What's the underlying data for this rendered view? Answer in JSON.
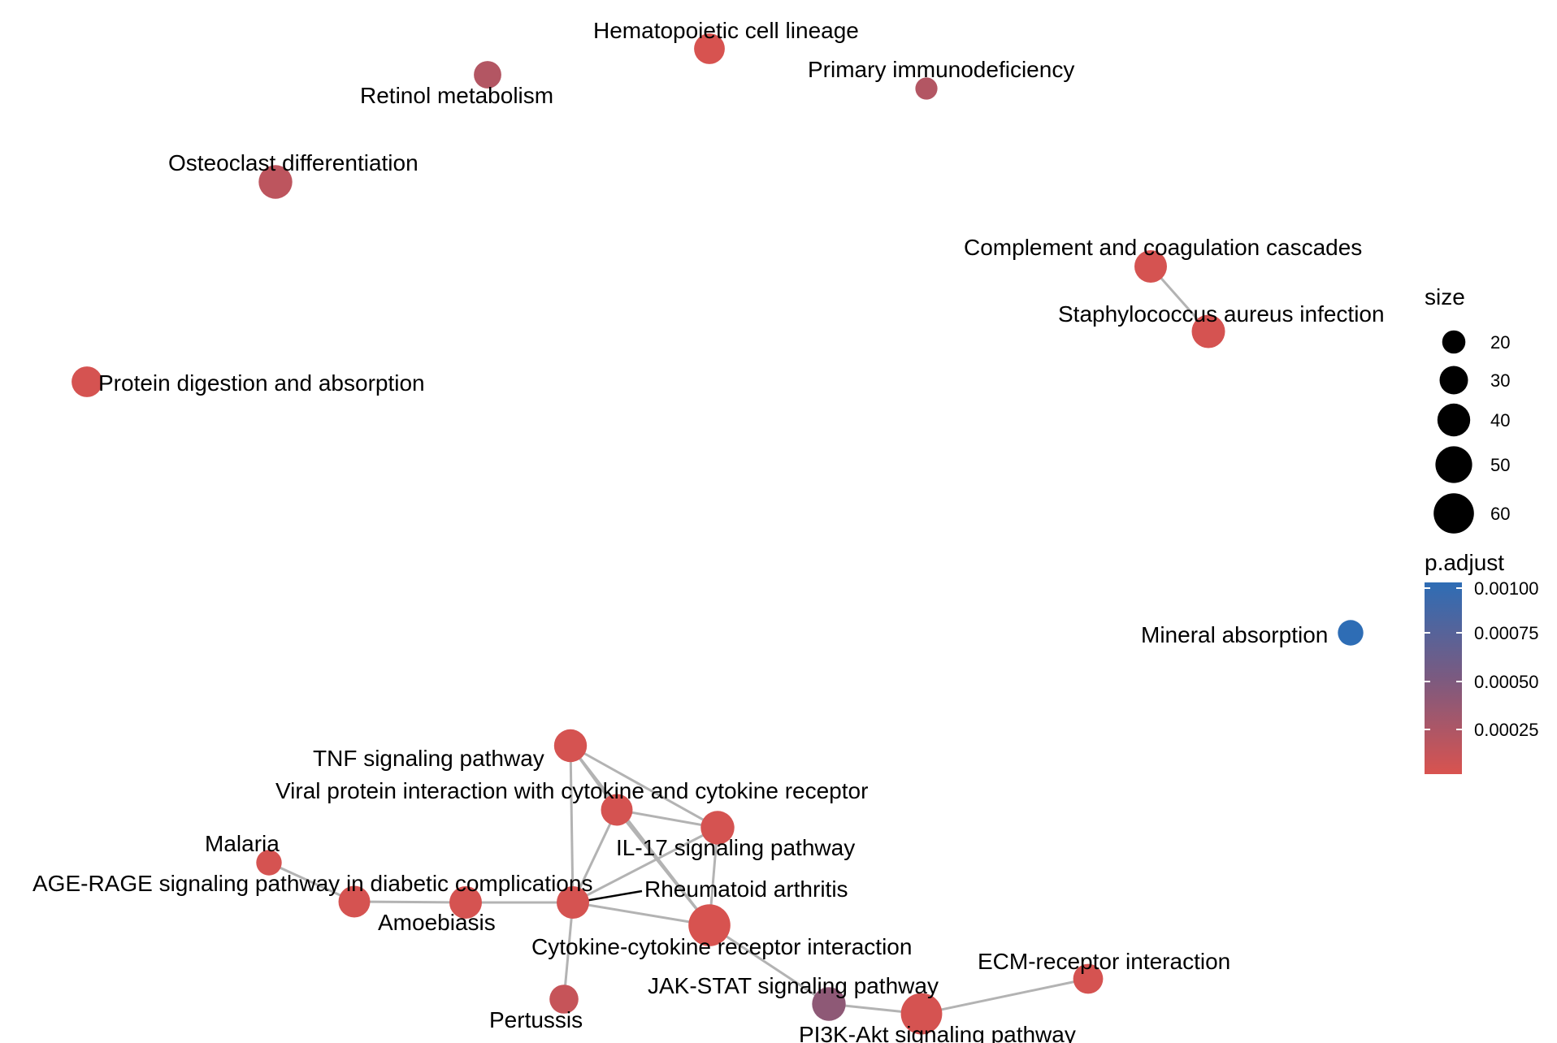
{
  "nodes": [
    {
      "id": "hematopoietic",
      "label": "Hematopoietic cell lineage",
      "size": 35,
      "p_adjust": 1e-05
    },
    {
      "id": "retinol",
      "label": "Retinol metabolism",
      "size": 28,
      "p_adjust": 0.0002
    },
    {
      "id": "primary_immuno",
      "label": "Primary immunodeficiency",
      "size": 18,
      "p_adjust": 0.0002
    },
    {
      "id": "osteoclast",
      "label": "Osteoclast differentiation",
      "size": 42,
      "p_adjust": 0.00015
    },
    {
      "id": "complement",
      "label": "Complement and coagulation cascades",
      "size": 39,
      "p_adjust": 2e-05
    },
    {
      "id": "staph",
      "label": "Staphylococcus aureus infection",
      "size": 41,
      "p_adjust": 2e-05
    },
    {
      "id": "protein_digest",
      "label": "Protein digestion and absorption",
      "size": 35,
      "p_adjust": 2e-05
    },
    {
      "id": "mineral",
      "label": "Mineral absorption",
      "size": 24,
      "p_adjust": 0.001
    },
    {
      "id": "tnf",
      "label": "TNF signaling pathway",
      "size": 40,
      "p_adjust": 2e-05
    },
    {
      "id": "viral",
      "label": "Viral protein interaction with cytokine and cytokine receptor",
      "size": 37,
      "p_adjust": 2e-05
    },
    {
      "id": "il17",
      "label": "IL-17 signaling pathway",
      "size": 42,
      "p_adjust": 2e-05
    },
    {
      "id": "malaria",
      "label": "Malaria",
      "size": 24,
      "p_adjust": 2e-05
    },
    {
      "id": "agerage",
      "label": "AGE-RAGE signaling pathway in diabetic complications",
      "size": 37,
      "p_adjust": 2e-05
    },
    {
      "id": "amoebiasis",
      "label": "Amoebiasis",
      "size": 39,
      "p_adjust": 2e-05
    },
    {
      "id": "rheumatoid",
      "label": "Rheumatoid arthritis",
      "size": 39,
      "p_adjust": 2e-05
    },
    {
      "id": "cytokine",
      "label": "Cytokine-cytokine receptor interaction",
      "size": 65,
      "p_adjust": 1e-05
    },
    {
      "id": "pertussis",
      "label": "Pertussis",
      "size": 31,
      "p_adjust": 0.0001
    },
    {
      "id": "jakstat",
      "label": "JAK-STAT signaling pathway",
      "size": 42,
      "p_adjust": 0.0004
    },
    {
      "id": "pi3k",
      "label": "PI3K-Akt signaling pathway",
      "size": 63,
      "p_adjust": 2e-05
    },
    {
      "id": "ecm",
      "label": "ECM-receptor interaction",
      "size": 33,
      "p_adjust": 2e-05
    }
  ],
  "edges": [
    [
      "complement",
      "staph"
    ],
    [
      "tnf",
      "viral"
    ],
    [
      "tnf",
      "il17"
    ],
    [
      "tnf",
      "rheumatoid"
    ],
    [
      "tnf",
      "cytokine"
    ],
    [
      "viral",
      "il17"
    ],
    [
      "viral",
      "rheumatoid"
    ],
    [
      "viral",
      "cytokine"
    ],
    [
      "il17",
      "rheumatoid"
    ],
    [
      "il17",
      "cytokine"
    ],
    [
      "rheumatoid",
      "cytokine"
    ],
    [
      "rheumatoid",
      "amoebiasis"
    ],
    [
      "rheumatoid",
      "pertussis"
    ],
    [
      "amoebiasis",
      "agerage"
    ],
    [
      "agerage",
      "malaria"
    ],
    [
      "cytokine",
      "jakstat"
    ],
    [
      "jakstat",
      "pi3k"
    ],
    [
      "pi3k",
      "ecm"
    ]
  ],
  "legend": {
    "size_title": "size",
    "size_breaks": [
      {
        "label": "20",
        "value": 20
      },
      {
        "label": "30",
        "value": 30
      },
      {
        "label": "40",
        "value": 40
      },
      {
        "label": "50",
        "value": 50
      },
      {
        "label": "60",
        "value": 60
      }
    ],
    "color_title": "p.adjust",
    "color_breaks": [
      "0.00100",
      "0.00075",
      "0.00050",
      "0.00025"
    ],
    "color_low": "#d9534f",
    "color_high": "#2e6db5"
  },
  "colors": {
    "edge": "#b3b3b3",
    "leader_line": "#000000"
  }
}
